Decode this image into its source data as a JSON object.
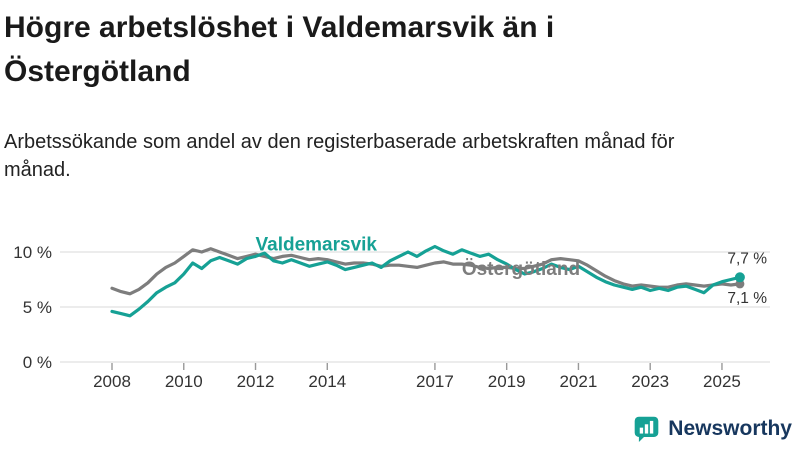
{
  "header": {
    "title": "Högre arbetslöshet i Valdemarsvik än i Östergötland",
    "subtitle": "Arbetssökande som andel av den registerbaserade arbetskraften månad för månad."
  },
  "logo": {
    "text": "Newsworthy",
    "icon": "bar-chart-speech-bubble-icon",
    "icon_color": "#16a195",
    "text_color": "#17375e"
  },
  "chart_data": {
    "type": "line",
    "unit": "%",
    "grid": true,
    "ylim": [
      0,
      11.5
    ],
    "yticks": [
      {
        "value": 0,
        "label": "0 %"
      },
      {
        "value": 5,
        "label": "5 %"
      },
      {
        "value": 10,
        "label": "10 %"
      }
    ],
    "xticks": [
      {
        "value": 2008,
        "label": "2008"
      },
      {
        "value": 2010,
        "label": "2010"
      },
      {
        "value": 2012,
        "label": "2012"
      },
      {
        "value": 2014,
        "label": "2014"
      },
      {
        "value": 2017,
        "label": "2017"
      },
      {
        "value": 2019,
        "label": "2019"
      },
      {
        "value": 2021,
        "label": "2021"
      },
      {
        "value": 2023,
        "label": "2023"
      },
      {
        "value": 2025,
        "label": "2025"
      }
    ],
    "x": [
      2008,
      2008.25,
      2008.5,
      2008.75,
      2009,
      2009.25,
      2009.5,
      2009.75,
      2010,
      2010.25,
      2010.5,
      2010.75,
      2011,
      2011.25,
      2011.5,
      2011.75,
      2012,
      2012.25,
      2012.5,
      2012.75,
      2013,
      2013.25,
      2013.5,
      2013.75,
      2014,
      2014.25,
      2014.5,
      2014.75,
      2015,
      2015.25,
      2015.5,
      2015.75,
      2016,
      2016.25,
      2016.5,
      2016.75,
      2017,
      2017.25,
      2017.5,
      2017.75,
      2018,
      2018.25,
      2018.5,
      2018.75,
      2019,
      2019.25,
      2019.5,
      2019.75,
      2020,
      2020.25,
      2020.5,
      2020.75,
      2021,
      2021.25,
      2021.5,
      2021.75,
      2022,
      2022.25,
      2022.5,
      2022.75,
      2023,
      2023.25,
      2023.5,
      2023.75,
      2024,
      2024.25,
      2024.5,
      2024.75,
      2025,
      2025.25,
      2025.5
    ],
    "series": [
      {
        "id": "ostergotland",
        "name": "Östergötland",
        "color": "#7d7d7d",
        "label_x": 2017.75,
        "label_y": 7.9,
        "end_label": "7,1 %",
        "end_label_dy": 19,
        "end_value": 7.1,
        "values": [
          6.7,
          6.4,
          6.2,
          6.6,
          7.2,
          8.0,
          8.6,
          9.0,
          9.6,
          10.2,
          10.0,
          10.3,
          10.0,
          9.7,
          9.4,
          9.6,
          9.8,
          9.6,
          9.4,
          9.6,
          9.7,
          9.5,
          9.3,
          9.4,
          9.3,
          9.1,
          8.9,
          9.0,
          9.0,
          8.9,
          8.7,
          8.8,
          8.8,
          8.7,
          8.6,
          8.8,
          9.0,
          9.1,
          8.9,
          8.9,
          8.8,
          8.6,
          8.5,
          8.6,
          8.6,
          8.5,
          8.5,
          8.7,
          8.9,
          9.3,
          9.4,
          9.3,
          9.2,
          8.8,
          8.3,
          7.8,
          7.4,
          7.1,
          6.9,
          7.0,
          6.9,
          6.8,
          6.8,
          7.0,
          7.1,
          7.0,
          6.9,
          7.0,
          7.1,
          7.0,
          7.1
        ]
      },
      {
        "id": "valdemarsvik",
        "name": "Valdemarsvik",
        "color": "#16a195",
        "label_x": 2012.0,
        "label_y": 10.15,
        "end_label": "7,7 %",
        "end_label_dy": -14,
        "end_value": 7.7,
        "values": [
          4.6,
          4.4,
          4.2,
          4.8,
          5.5,
          6.3,
          6.8,
          7.2,
          8.0,
          9.0,
          8.5,
          9.2,
          9.5,
          9.2,
          8.9,
          9.4,
          9.6,
          9.9,
          9.2,
          9.0,
          9.3,
          9.0,
          8.7,
          8.9,
          9.1,
          8.8,
          8.4,
          8.6,
          8.8,
          9.0,
          8.6,
          9.2,
          9.6,
          10.0,
          9.6,
          10.1,
          10.5,
          10.1,
          9.8,
          10.2,
          9.9,
          9.6,
          9.8,
          9.3,
          8.9,
          8.4,
          8.0,
          8.2,
          8.5,
          8.9,
          8.6,
          8.4,
          8.7,
          8.2,
          7.7,
          7.3,
          7.0,
          6.8,
          6.6,
          6.8,
          6.5,
          6.7,
          6.5,
          6.8,
          6.9,
          6.6,
          6.3,
          7.0,
          7.3,
          7.5,
          7.7
        ]
      }
    ],
    "end_label_color": "#333333"
  }
}
